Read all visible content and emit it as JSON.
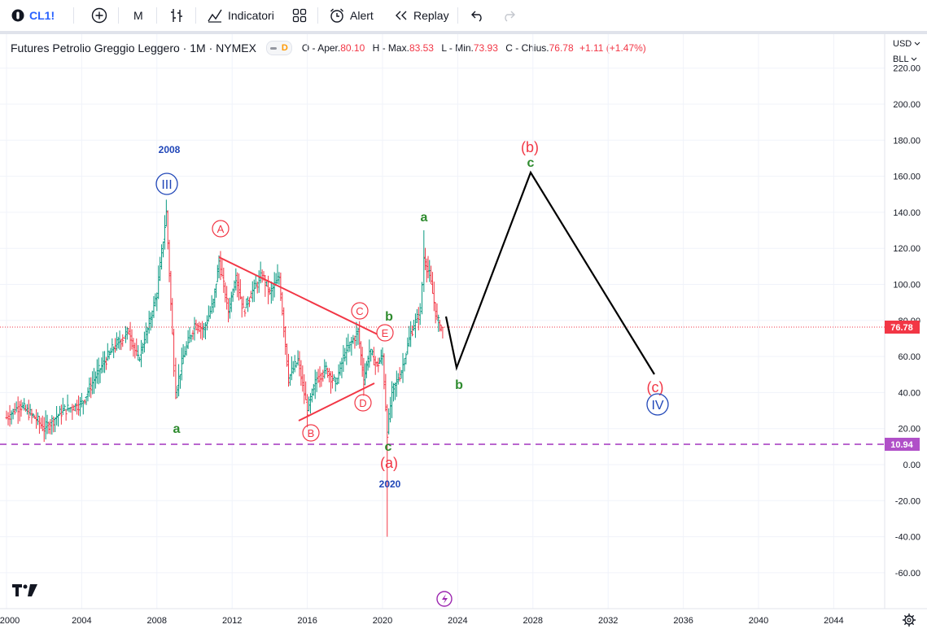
{
  "toolbar": {
    "symbol": "CL1!",
    "interval": "M",
    "indicators_label": "Indicatori",
    "alert_label": "Alert",
    "replay_label": "Replay"
  },
  "legend": {
    "title": "Futures Petrolio Greggio Leggero · 1M · NYMEX",
    "badge": "D",
    "o_label": "O - Aper.",
    "o_value": "80.10",
    "h_label": "H - Max.",
    "h_value": "83.53",
    "l_label": "L - Min.",
    "l_value": "73.93",
    "c_label": "C - Chius.",
    "c_value": "76.78",
    "change": "+1.11 (+1.47%)"
  },
  "price_axis": {
    "currency": "USD",
    "unit": "BLL",
    "ticks": [
      "220.00",
      "200.00",
      "180.00",
      "160.00",
      "140.00",
      "120.00",
      "100.00",
      "80.00",
      "60.00",
      "40.00",
      "20.00",
      "0.00",
      "-20.00",
      "-40.00",
      "-60.00"
    ],
    "last_price_label": "76.78",
    "hline_label": "10.94"
  },
  "time_axis": {
    "ticks": [
      "2000",
      "2004",
      "2008",
      "2012",
      "2016",
      "2020",
      "2024",
      "2028",
      "2032",
      "2036",
      "2040",
      "2044"
    ]
  },
  "annotations": {
    "year_2008": "2008",
    "year_2020": "2020",
    "wave_III": "III",
    "wave_IV": "IV",
    "A": "A",
    "B": "B",
    "C": "C",
    "D": "D",
    "E": "E",
    "a1": "a",
    "a2": "a",
    "b1": "b",
    "b2": "b",
    "c1": "c",
    "c2": "c",
    "pa": "(a)",
    "pb": "(b)",
    "pc": "(c)"
  },
  "colors": {
    "up": "#089981",
    "down": "#f23645",
    "green_label": "#2e8b2e",
    "red_label": "#f23645",
    "blue_label": "#2147b8",
    "dashed_line": "#b050c8",
    "projection": "#000000"
  },
  "icons": {
    "symbol_icon": "circle-logo-icon",
    "add": "plus-circle-icon",
    "bars": "bar-chart-icon",
    "indicators": "indicators-icon",
    "templates": "grid-icon",
    "alert": "alarm-clock-icon",
    "replay": "rewind-icon",
    "undo": "undo-icon",
    "redo": "redo-icon",
    "settings": "gear-icon",
    "tv_logo": "tradingview-logo-icon",
    "lightning": "lightning-icon"
  }
}
